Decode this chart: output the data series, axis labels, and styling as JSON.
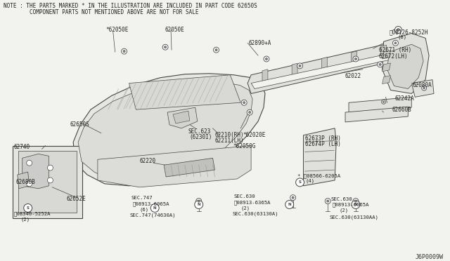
{
  "bg_color": "#f2f2ee",
  "line_color": "#444444",
  "title_line1": "NOTE : THE PARTS MARKED * IN THE ILLUSTRATION ARE INCLUDED IN PART CODE 62650S",
  "title_line2": "        COMPONENT PARTS NOT MENTIONED ABOVE ARE NOT FOR SALE",
  "diagram_id": "J6P0009W"
}
